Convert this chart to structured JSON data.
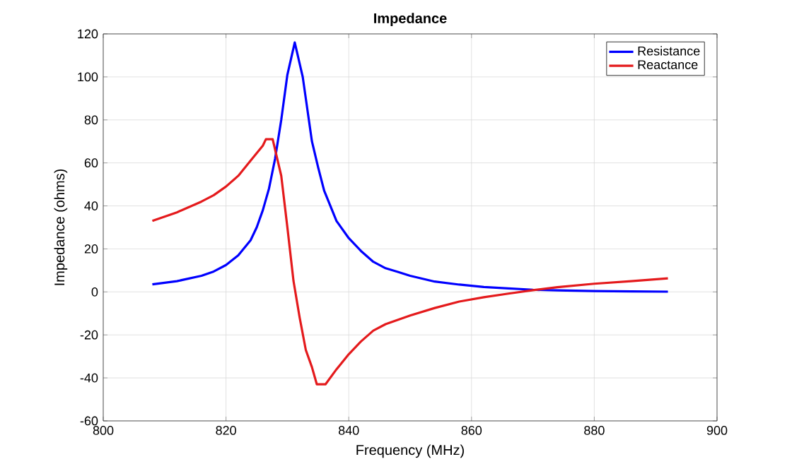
{
  "chart_data": {
    "type": "line",
    "title": "Impedance",
    "xlabel": "Frequency (MHz)",
    "ylabel": "Impedance (ohms)",
    "xlim": [
      800,
      900
    ],
    "xticks": [
      800,
      820,
      840,
      860,
      880,
      900
    ],
    "ylim": [
      -60,
      120
    ],
    "yticks": [
      -60,
      -40,
      -20,
      0,
      20,
      40,
      60,
      80,
      100,
      120
    ],
    "grid": true,
    "legend": "top right",
    "marker": "none",
    "line_style": "solid",
    "series": [
      {
        "name": "Resistance",
        "color": "#0000ff",
        "x": [
          808,
          812,
          816,
          818,
          820,
          822,
          824,
          825,
          826,
          827,
          828,
          829,
          830,
          831.2,
          832.5,
          834,
          835,
          836,
          837,
          838,
          839,
          840,
          842,
          844,
          846,
          848,
          850,
          854,
          858,
          862,
          866,
          870,
          874,
          880,
          886,
          892
        ],
        "values": [
          3.5,
          5,
          7.5,
          9.5,
          12.5,
          17,
          24,
          30,
          38,
          48,
          62,
          80,
          101,
          116,
          100,
          70,
          58,
          47,
          40,
          33,
          29,
          25,
          19,
          14,
          11,
          9.3,
          7.5,
          4.8,
          3.4,
          2.3,
          1.6,
          1.0,
          0.7,
          0.4,
          0.2,
          0.1
        ]
      },
      {
        "name": "Reactance",
        "color": "#e41a1c",
        "x": [
          808,
          812,
          816,
          818,
          820,
          822,
          824,
          826,
          826.5,
          827.6,
          829,
          830,
          831,
          832,
          833,
          834,
          834.8,
          836.2,
          838,
          840,
          842,
          844,
          846,
          850,
          854,
          858,
          862,
          866,
          870,
          874,
          880,
          886,
          892
        ],
        "values": [
          33,
          37,
          42,
          45,
          49,
          54,
          61,
          68,
          71,
          71,
          54,
          30,
          5,
          -12,
          -27,
          -35,
          -43,
          -43,
          -36,
          -29,
          -23,
          -18,
          -15,
          -11,
          -7.5,
          -4.5,
          -2.5,
          -0.8,
          0.8,
          2.2,
          3.8,
          5,
          6.3
        ]
      }
    ]
  }
}
